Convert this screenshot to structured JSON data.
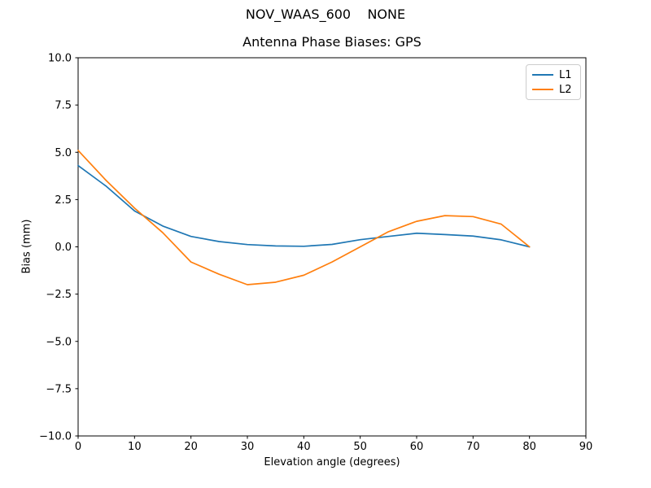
{
  "figure": {
    "suptitle": "NOV_WAAS_600    NONE",
    "axes_title": "Antenna Phase Biases: GPS"
  },
  "chart_data": {
    "type": "line",
    "title": "Antenna Phase Biases: GPS",
    "suptitle": "NOV_WAAS_600    NONE",
    "xlabel": "Elevation angle (degrees)",
    "ylabel": "Bias (mm)",
    "xlim": [
      0,
      90
    ],
    "ylim": [
      -10,
      10
    ],
    "grid": false,
    "legend_position": "upper right",
    "xticks": [
      {
        "value": 0,
        "label": "0"
      },
      {
        "value": 10,
        "label": "10"
      },
      {
        "value": 20,
        "label": "20"
      },
      {
        "value": 30,
        "label": "30"
      },
      {
        "value": 40,
        "label": "40"
      },
      {
        "value": 50,
        "label": "50"
      },
      {
        "value": 60,
        "label": "60"
      },
      {
        "value": 70,
        "label": "70"
      },
      {
        "value": 80,
        "label": "80"
      },
      {
        "value": 90,
        "label": "90"
      }
    ],
    "yticks": [
      {
        "value": -10,
        "label": "−10.0"
      },
      {
        "value": -7.5,
        "label": "−7.5"
      },
      {
        "value": -5,
        "label": "−5.0"
      },
      {
        "value": -2.5,
        "label": "−2.5"
      },
      {
        "value": 0,
        "label": "0.0"
      },
      {
        "value": 2.5,
        "label": "2.5"
      },
      {
        "value": 5,
        "label": "5.0"
      },
      {
        "value": 7.5,
        "label": "7.5"
      },
      {
        "value": 10,
        "label": "10.0"
      }
    ],
    "x": [
      0,
      5,
      10,
      15,
      20,
      25,
      30,
      35,
      40,
      45,
      50,
      55,
      60,
      65,
      70,
      75,
      80
    ],
    "series": [
      {
        "name": "L1",
        "color": "#1f77b4",
        "values": [
          4.3,
          3.2,
          1.9,
          1.1,
          0.55,
          0.28,
          0.12,
          0.05,
          0.03,
          0.13,
          0.38,
          0.55,
          0.72,
          0.65,
          0.57,
          0.37,
          0.0
        ]
      },
      {
        "name": "L2",
        "color": "#ff7f0e",
        "values": [
          5.1,
          3.5,
          2.05,
          0.75,
          -0.8,
          -1.45,
          -2.0,
          -1.87,
          -1.5,
          -0.8,
          0.0,
          0.8,
          1.35,
          1.65,
          1.6,
          1.2,
          0.0
        ]
      }
    ]
  }
}
